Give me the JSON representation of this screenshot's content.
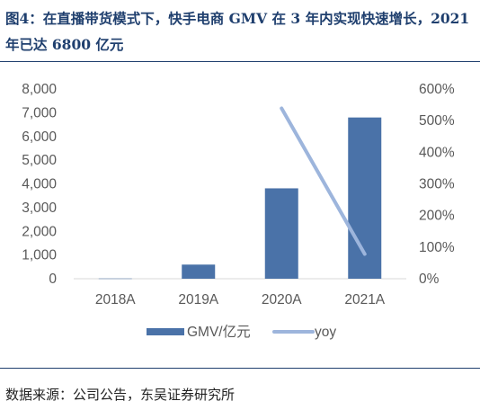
{
  "header": {
    "title": "图4：在直播带货模式下，快手电商 GMV 在 3 年内实现快速增长，2021 年已达 6800 亿元"
  },
  "footer": {
    "source": "数据来源：公司公告，东吴证券研究所"
  },
  "chart_data": {
    "type": "bar",
    "categories": [
      "2018A",
      "2019A",
      "2020A",
      "2021A"
    ],
    "series": [
      {
        "name": "GMV/亿元",
        "type": "bar",
        "axis": "left",
        "color": "#4a72a8",
        "values": [
          10,
          596,
          3812,
          6800
        ]
      },
      {
        "name": "yoy",
        "type": "line",
        "axis": "right",
        "color": "#9db5dc",
        "values": [
          null,
          null,
          539,
          78
        ]
      }
    ],
    "y_left": {
      "min": 0,
      "max": 8000,
      "ticks": [
        "0",
        "1,000",
        "2,000",
        "3,000",
        "4,000",
        "5,000",
        "6,000",
        "7,000",
        "8,000"
      ]
    },
    "y_right": {
      "min": 0,
      "max": 600,
      "ticks": [
        "0%",
        "100%",
        "200%",
        "300%",
        "400%",
        "500%",
        "600%"
      ]
    },
    "legend_position": "bottom",
    "grid": false
  }
}
